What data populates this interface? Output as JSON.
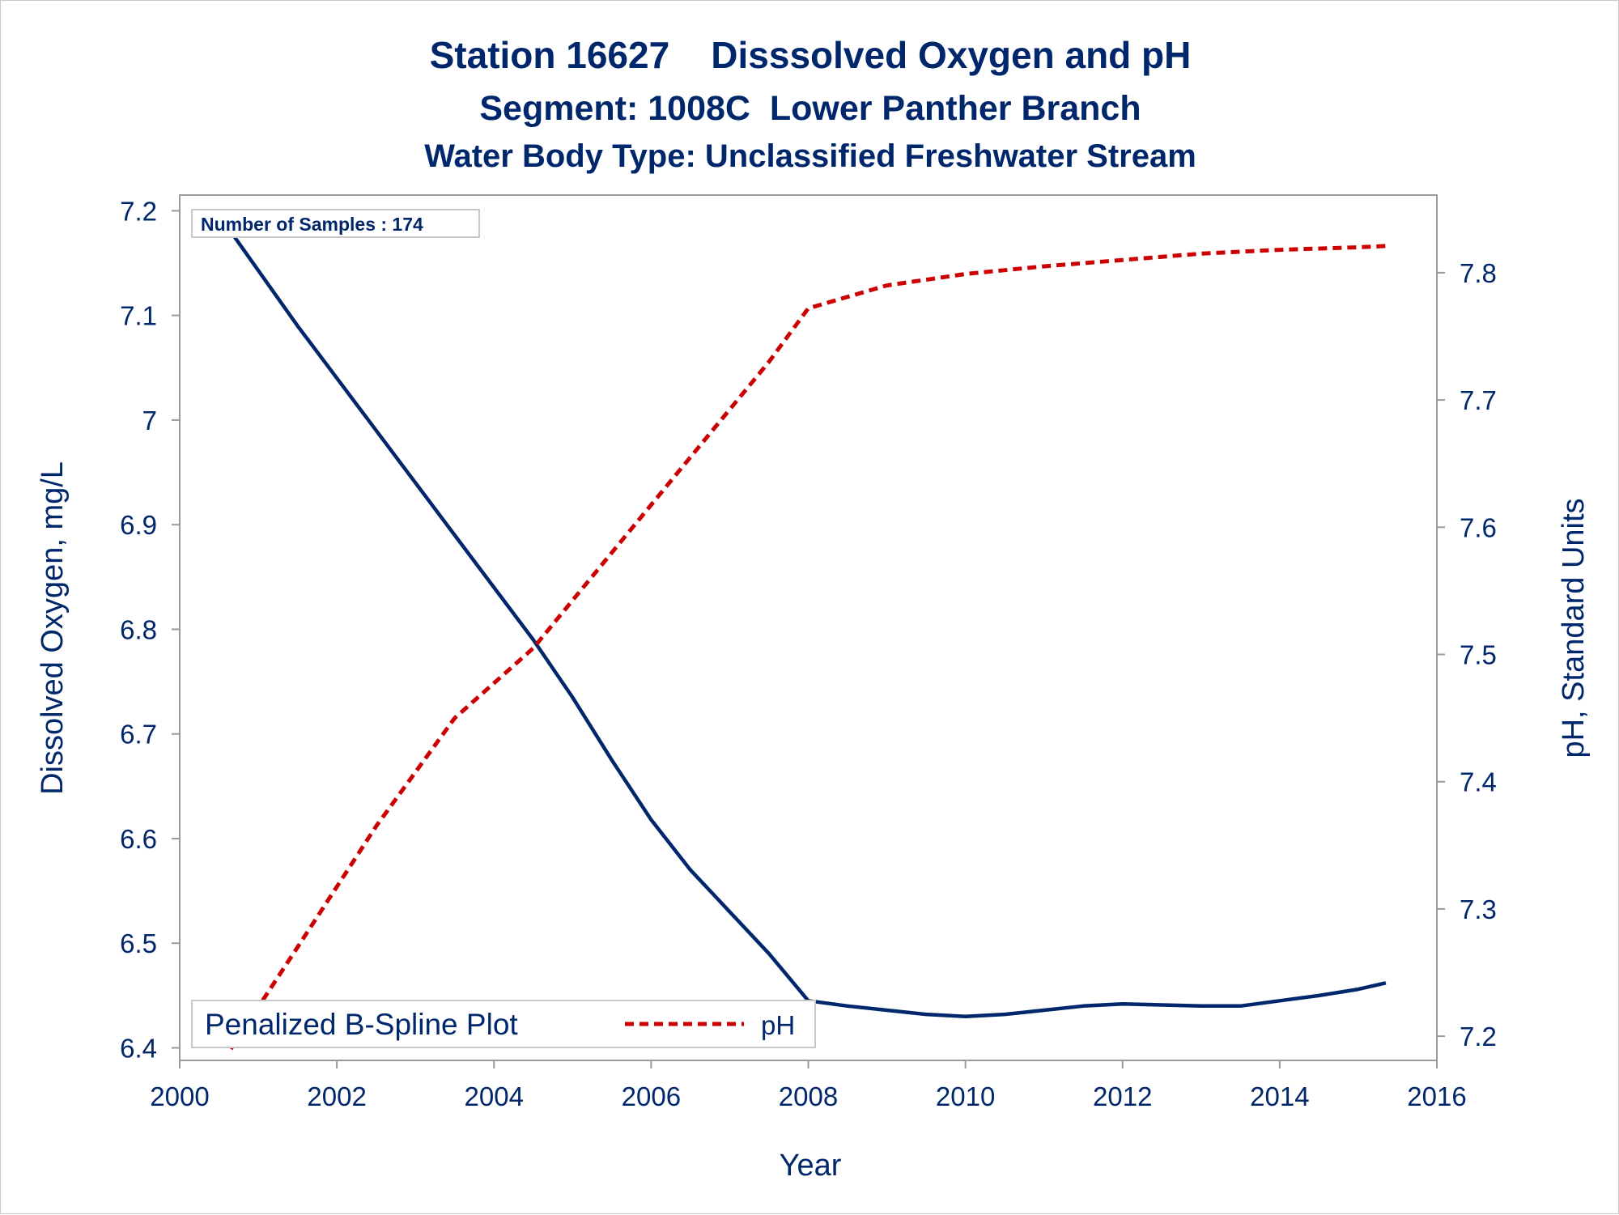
{
  "titles": [
    "Station 16627    Disssolved Oxygen and pH",
    "Segment: 1008C  Lower Panther Branch",
    "Water Body Type: Unclassified Freshwater Stream"
  ],
  "colors": {
    "text": "#00266b",
    "do_line": "#00266b",
    "ph_line": "#cc0000",
    "frame": "#9a9a9a",
    "inset_border": "#c8c8c8"
  },
  "chart_data": {
    "type": "line",
    "xlabel": "Year",
    "ylabel": "Dissolved Oxygen, mg/L",
    "y2label": "pH, Standard Units",
    "xlim": [
      2000,
      2016
    ],
    "ylim": [
      6.388,
      7.215
    ],
    "y2lim": [
      7.181,
      7.861
    ],
    "x_ticks": [
      2000,
      2002,
      2004,
      2006,
      2008,
      2010,
      2012,
      2014,
      2016
    ],
    "x_tick_labels": [
      "2000",
      "2002",
      "2004",
      "2006",
      "2008",
      "2010",
      "2012",
      "2014",
      "2016"
    ],
    "y_ticks": [
      6.4,
      6.5,
      6.6,
      6.7,
      6.8,
      6.9,
      7.0,
      7.1,
      7.2
    ],
    "y_tick_labels": [
      "6.4",
      "6.5",
      "6.6",
      "6.7",
      "6.8",
      "6.9",
      "7",
      "7.1",
      "7.2"
    ],
    "y2_ticks": [
      7.2,
      7.3,
      7.4,
      7.5,
      7.6,
      7.7,
      7.8
    ],
    "y2_tick_labels": [
      "7.2",
      "7.3",
      "7.4",
      "7.5",
      "7.6",
      "7.7",
      "7.8"
    ],
    "grid": false,
    "inset_text": "Number of Samples : 174",
    "legend": {
      "position": "bottom-left",
      "title": "Penalized B-Spline Plot",
      "entries": [
        "pH"
      ]
    },
    "series": [
      {
        "name": "Dissolved Oxygen",
        "axis": "left",
        "style": "solid",
        "x": [
          2000.65,
          2001.5,
          2002.5,
          2003.5,
          2004.5,
          2005.0,
          2005.5,
          2006.0,
          2006.5,
          2007.0,
          2007.5,
          2008.0,
          2008.5,
          2009.0,
          2009.5,
          2010.0,
          2010.5,
          2011.0,
          2011.5,
          2012.0,
          2012.5,
          2013.0,
          2013.5,
          2014.0,
          2014.5,
          2015.0,
          2015.35
        ],
        "y": [
          7.18,
          7.09,
          6.99,
          6.89,
          6.79,
          6.735,
          6.675,
          6.618,
          6.57,
          6.53,
          6.49,
          6.445,
          6.44,
          6.436,
          6.432,
          6.43,
          6.432,
          6.436,
          6.44,
          6.442,
          6.441,
          6.44,
          6.44,
          6.445,
          6.45,
          6.456,
          6.462
        ]
      },
      {
        "name": "pH",
        "axis": "right",
        "style": "dashed",
        "x": [
          2000.65,
          2001.5,
          2002.5,
          2003.5,
          2004.5,
          2005.5,
          2006.5,
          2007.5,
          2008.0,
          2009.0,
          2010.0,
          2011.0,
          2012.0,
          2013.0,
          2014.0,
          2015.0,
          2015.35
        ],
        "y": [
          7.19,
          7.27,
          7.365,
          7.45,
          7.505,
          7.58,
          7.655,
          7.73,
          7.772,
          7.79,
          7.799,
          7.805,
          7.81,
          7.815,
          7.818,
          7.82,
          7.821
        ]
      }
    ]
  }
}
